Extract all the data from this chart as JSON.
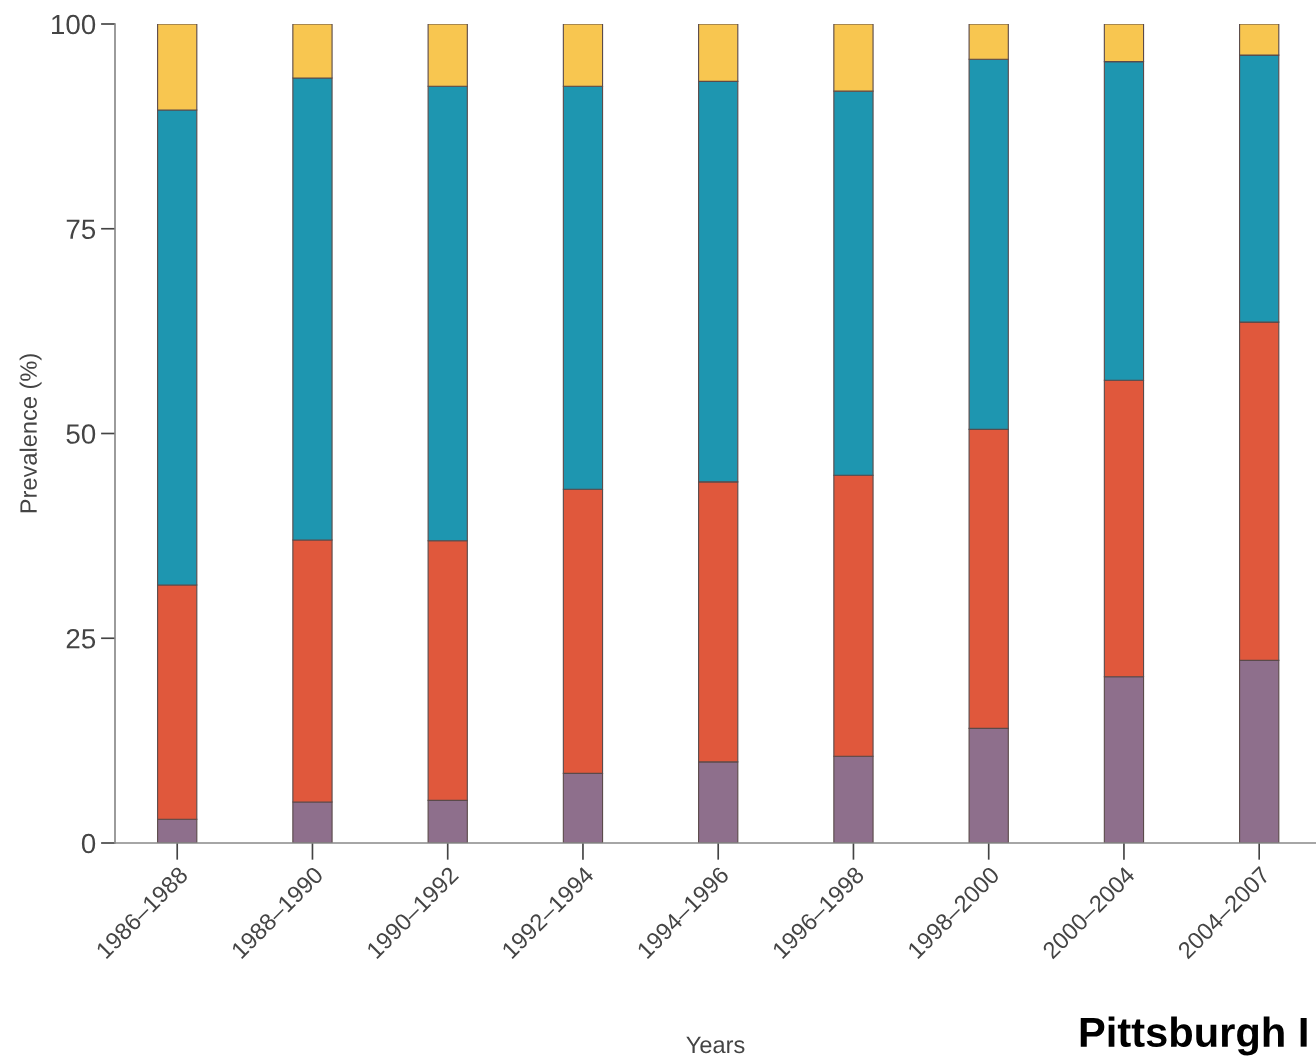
{
  "chart_data": {
    "type": "bar",
    "stacked": true,
    "xlabel": "Years",
    "ylabel": "Prevalence (%)",
    "categories": [
      "1986–1988",
      "1988–1990",
      "1990–1992",
      "1992–1994",
      "1994–1996",
      "1996–1998",
      "1998–2000",
      "2000–2004",
      "2004–2007"
    ],
    "series": [
      {
        "color": "#8e6f8c",
        "values": [
          2.9,
          5.0,
          5.2,
          8.5,
          9.9,
          10.6,
          14.0,
          20.3,
          22.3
        ]
      },
      {
        "color": "#e0583c",
        "values": [
          28.6,
          32.0,
          31.7,
          34.7,
          34.2,
          34.3,
          36.5,
          36.2,
          41.3
        ]
      },
      {
        "color": "#1e96b0",
        "values": [
          58.0,
          56.4,
          55.5,
          49.2,
          48.9,
          46.9,
          45.2,
          38.9,
          32.6
        ]
      },
      {
        "color": "#f8c650",
        "values": [
          10.5,
          6.6,
          7.6,
          7.6,
          7.0,
          8.2,
          4.3,
          4.6,
          3.8
        ]
      }
    ],
    "ylim": [
      0,
      100
    ],
    "yticks": [
      0,
      25,
      50,
      75,
      100
    ],
    "grid": false,
    "legend": false,
    "annotations": [
      "Pittsburgh I"
    ]
  }
}
